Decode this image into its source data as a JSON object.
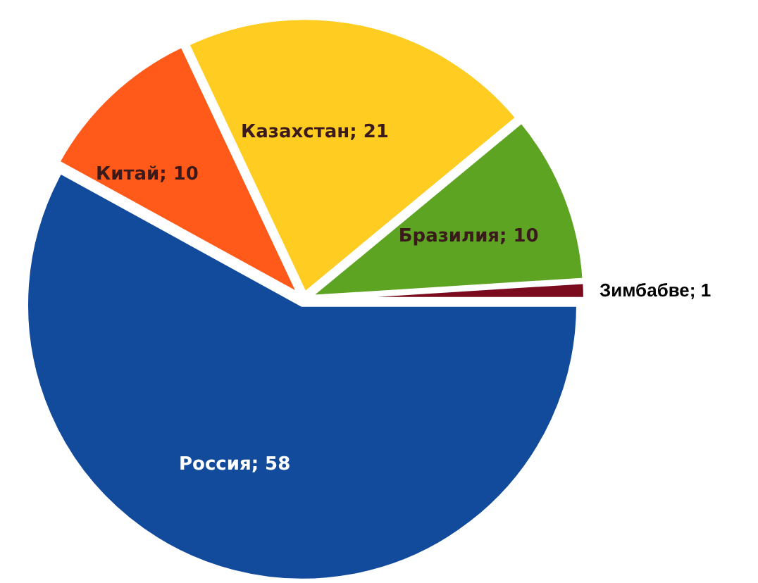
{
  "chart_data": {
    "type": "pie",
    "categories": [
      "Зимбабве",
      "Бразилия",
      "Казахстан",
      "Китай",
      "Россия"
    ],
    "values": [
      1,
      10,
      21,
      10,
      58
    ],
    "colors": [
      "#7b0c1e",
      "#5ea423",
      "#ffcc22",
      "#ff5a1a",
      "#124b9c"
    ],
    "value_labels": [
      "; 1",
      "; 10",
      "; 21",
      "; 10",
      "; 58"
    ]
  }
}
